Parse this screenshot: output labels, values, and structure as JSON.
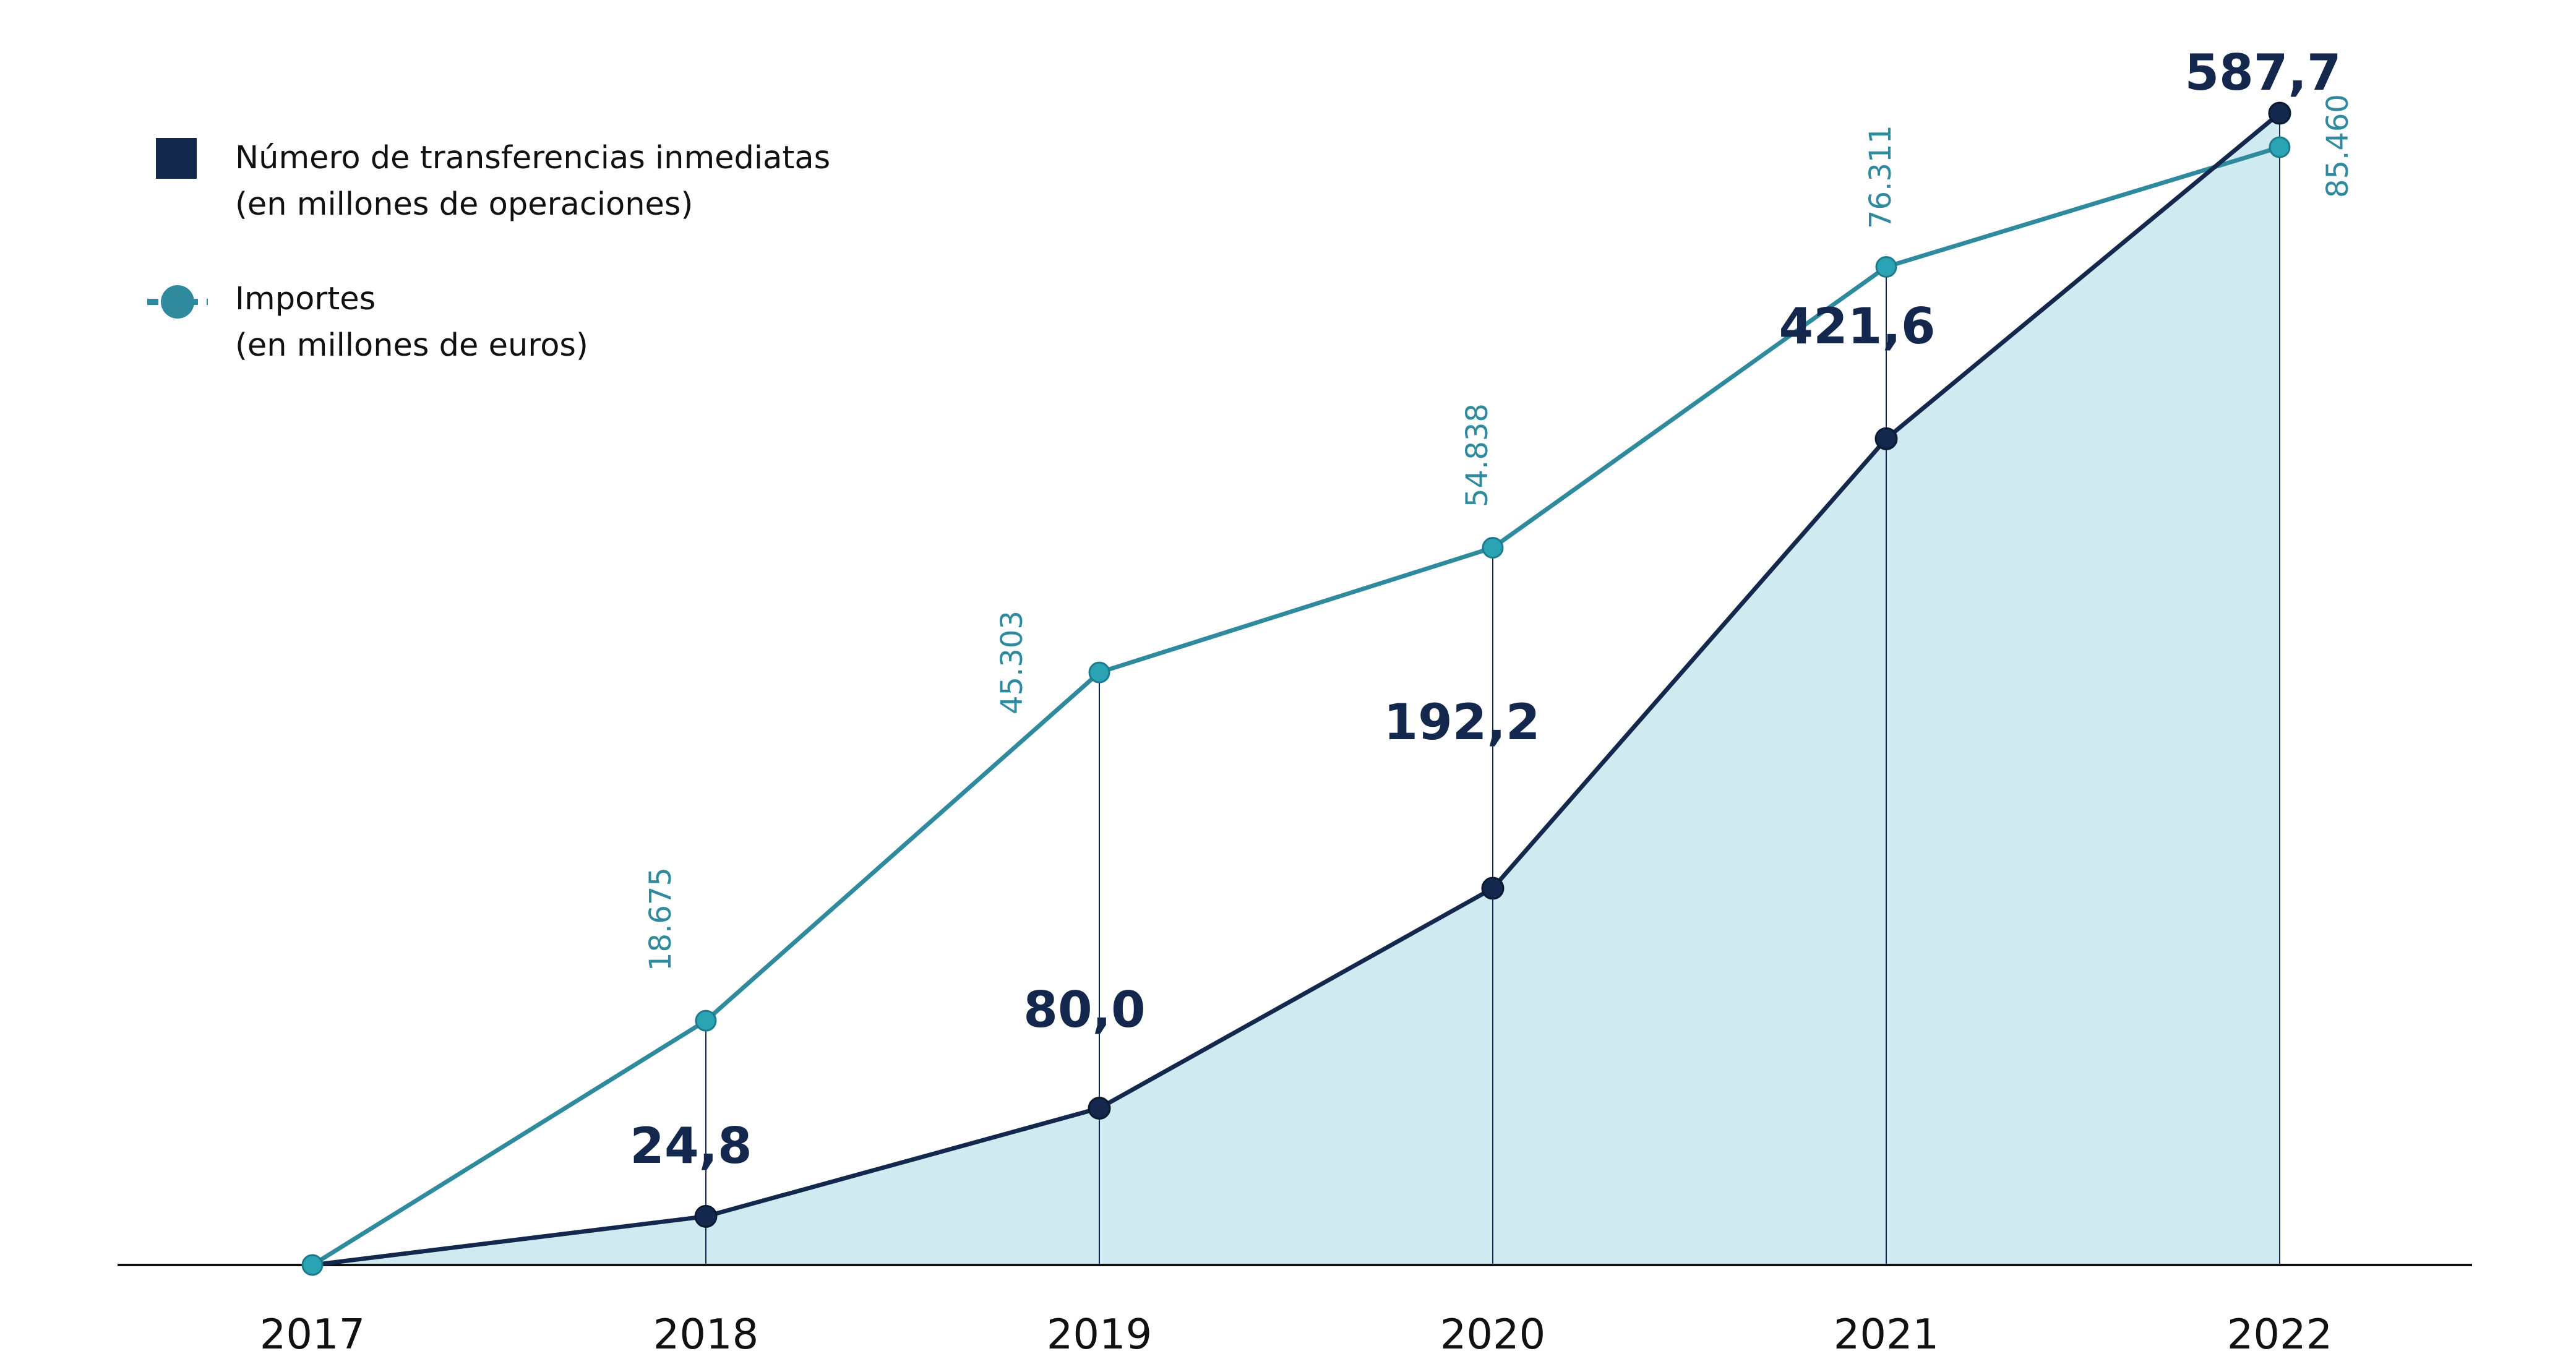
{
  "chart_data": {
    "type": "area",
    "title": "",
    "xlabel": "",
    "ylabel": "",
    "categories": [
      "2017",
      "2018",
      "2019",
      "2020",
      "2021",
      "2022"
    ],
    "series": [
      {
        "name": "Número de transferencias inmediatas",
        "name_line2": "(en millones de operaciones)",
        "kind": "area",
        "color": "#13284c",
        "fill": "#cfeaf0",
        "values": [
          0,
          24.8,
          80.0,
          192.2,
          421.6,
          587.7
        ],
        "labels": [
          "",
          "24,8",
          "80,0",
          "192,2",
          "421,6",
          "587,7"
        ],
        "ylim": [
          0,
          587.7
        ]
      },
      {
        "name": "Importes",
        "name_line2": "(en millones de euros)",
        "kind": "line",
        "color": "#2e8a9c",
        "marker_color": "#2aa3b5",
        "values": [
          0,
          18675,
          45303,
          54838,
          76311,
          85460
        ],
        "labels": [
          "",
          "18.675",
          "45.303",
          "54.838",
          "76.311",
          "85.460"
        ],
        "ylim": [
          0,
          85460
        ]
      }
    ],
    "grid": false,
    "legend_position": "top-left"
  }
}
